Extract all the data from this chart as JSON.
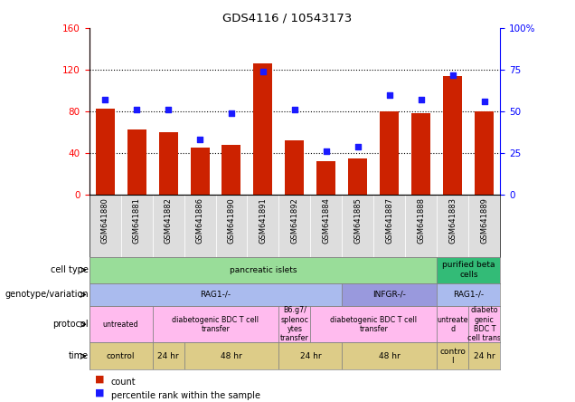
{
  "title": "GDS4116 / 10543173",
  "samples": [
    "GSM641880",
    "GSM641881",
    "GSM641882",
    "GSM641886",
    "GSM641890",
    "GSM641891",
    "GSM641892",
    "GSM641884",
    "GSM641885",
    "GSM641887",
    "GSM641888",
    "GSM641883",
    "GSM641889"
  ],
  "counts": [
    83,
    63,
    60,
    45,
    48,
    126,
    52,
    32,
    35,
    80,
    78,
    114,
    80
  ],
  "percentile": [
    57,
    51,
    51,
    33,
    49,
    74,
    51,
    26,
    29,
    60,
    57,
    72,
    56
  ],
  "left_ylim": [
    0,
    160
  ],
  "right_ylim": [
    0,
    100
  ],
  "left_yticks": [
    0,
    40,
    80,
    120,
    160
  ],
  "right_yticks": [
    0,
    25,
    50,
    75,
    100
  ],
  "left_yticklabels": [
    "0",
    "40",
    "80",
    "120",
    "160"
  ],
  "right_yticklabels": [
    "0",
    "25",
    "50",
    "75",
    "100%"
  ],
  "bar_color": "#cc2200",
  "scatter_color": "#1a1aff",
  "cell_type_blocks": [
    {
      "text": "pancreatic islets",
      "start": 0,
      "end": 11,
      "color": "#99dd99"
    },
    {
      "text": "purified beta\ncells",
      "start": 11,
      "end": 13,
      "color": "#33bb77"
    }
  ],
  "genotype_blocks": [
    {
      "text": "RAG1-/-",
      "start": 0,
      "end": 8,
      "color": "#aabbee"
    },
    {
      "text": "INFGR-/-",
      "start": 8,
      "end": 11,
      "color": "#9999dd"
    },
    {
      "text": "RAG1-/-",
      "start": 11,
      "end": 13,
      "color": "#aabbee"
    }
  ],
  "protocol_blocks": [
    {
      "text": "untreated",
      "start": 0,
      "end": 2,
      "color": "#ffbbee"
    },
    {
      "text": "diabetogenic BDC T cell\ntransfer",
      "start": 2,
      "end": 6,
      "color": "#ffbbee"
    },
    {
      "text": "B6.g7/\nsplenoc\nytes\ntransfer",
      "start": 6,
      "end": 7,
      "color": "#ffbbee"
    },
    {
      "text": "diabetogenic BDC T cell\ntransfer",
      "start": 7,
      "end": 11,
      "color": "#ffbbee"
    },
    {
      "text": "untreate\nd",
      "start": 11,
      "end": 12,
      "color": "#ffbbee"
    },
    {
      "text": "diabeto\ngenic\nBDC T\ncell trans",
      "start": 12,
      "end": 13,
      "color": "#ffbbee"
    }
  ],
  "time_blocks": [
    {
      "text": "control",
      "start": 0,
      "end": 2,
      "color": "#ddcc88"
    },
    {
      "text": "24 hr",
      "start": 2,
      "end": 3,
      "color": "#ddcc88"
    },
    {
      "text": "48 hr",
      "start": 3,
      "end": 6,
      "color": "#ddcc88"
    },
    {
      "text": "24 hr",
      "start": 6,
      "end": 8,
      "color": "#ddcc88"
    },
    {
      "text": "48 hr",
      "start": 8,
      "end": 11,
      "color": "#ddcc88"
    },
    {
      "text": "contro\nl",
      "start": 11,
      "end": 12,
      "color": "#ddcc88"
    },
    {
      "text": "24 hr",
      "start": 12,
      "end": 13,
      "color": "#ddcc88"
    }
  ],
  "row_labels": [
    "cell type",
    "genotype/variation",
    "protocol",
    "time"
  ],
  "grid_hlines": [
    40,
    80,
    120
  ],
  "sample_box_color": "#dddddd",
  "legend_items": [
    {
      "color": "#cc2200",
      "label": "count"
    },
    {
      "color": "#1a1aff",
      "label": "percentile rank within the sample"
    }
  ]
}
